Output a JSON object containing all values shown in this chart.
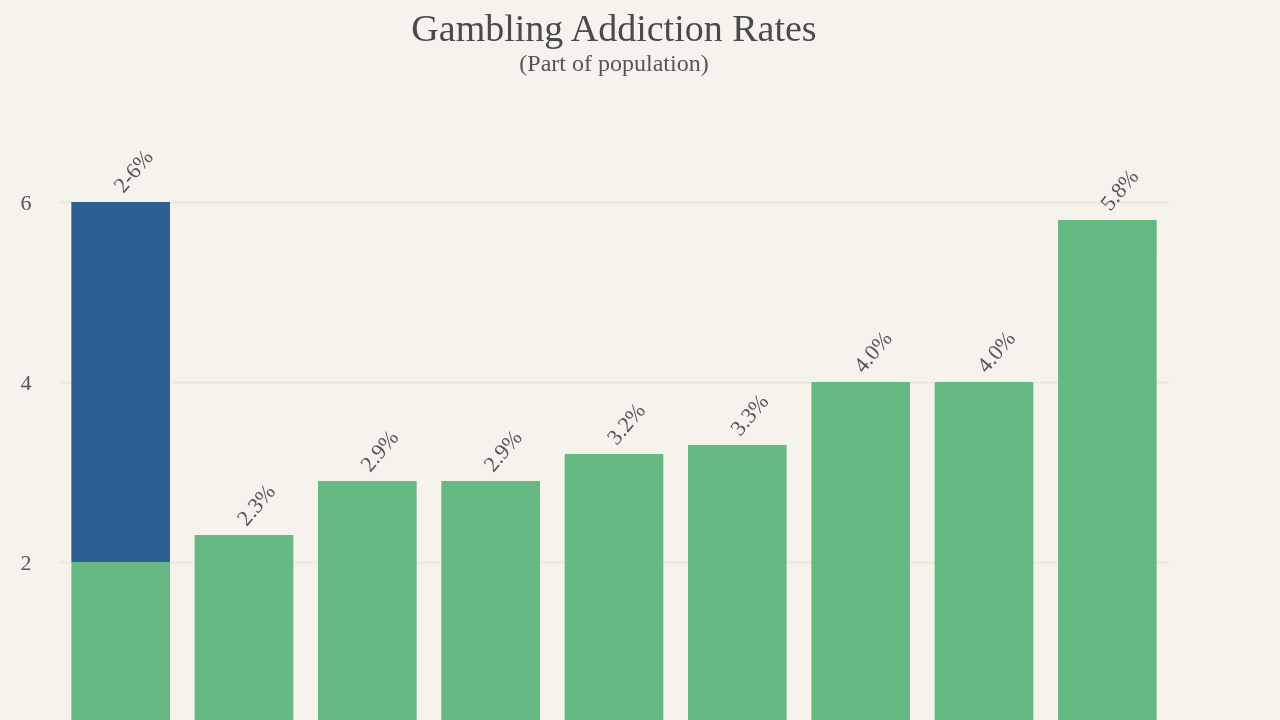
{
  "chart_data": {
    "type": "bar",
    "title": "Gambling Addiction Rates",
    "subtitle": "(Part of population)",
    "categories": [
      null,
      null,
      null,
      null,
      null,
      null,
      null,
      null,
      null
    ],
    "stacked": true,
    "series": [
      {
        "color": "#67b983",
        "values": [
          2,
          2.3,
          2.9,
          2.9,
          3.2,
          3.3,
          4.0,
          4.0,
          5.8
        ]
      },
      {
        "color": "#2d5e94",
        "values": [
          4,
          null,
          null,
          null,
          null,
          null,
          null,
          null,
          null
        ]
      }
    ],
    "totals": [
      "2-6%",
      "2.3%",
      "2.9%",
      "2.9%",
      "3.2%",
      "3.3%",
      "4.0%",
      "4.0%",
      "5.8%"
    ],
    "ylim": [
      0,
      6
    ],
    "yticks": [
      2,
      4,
      6
    ],
    "grid": "y",
    "legend": false
  }
}
